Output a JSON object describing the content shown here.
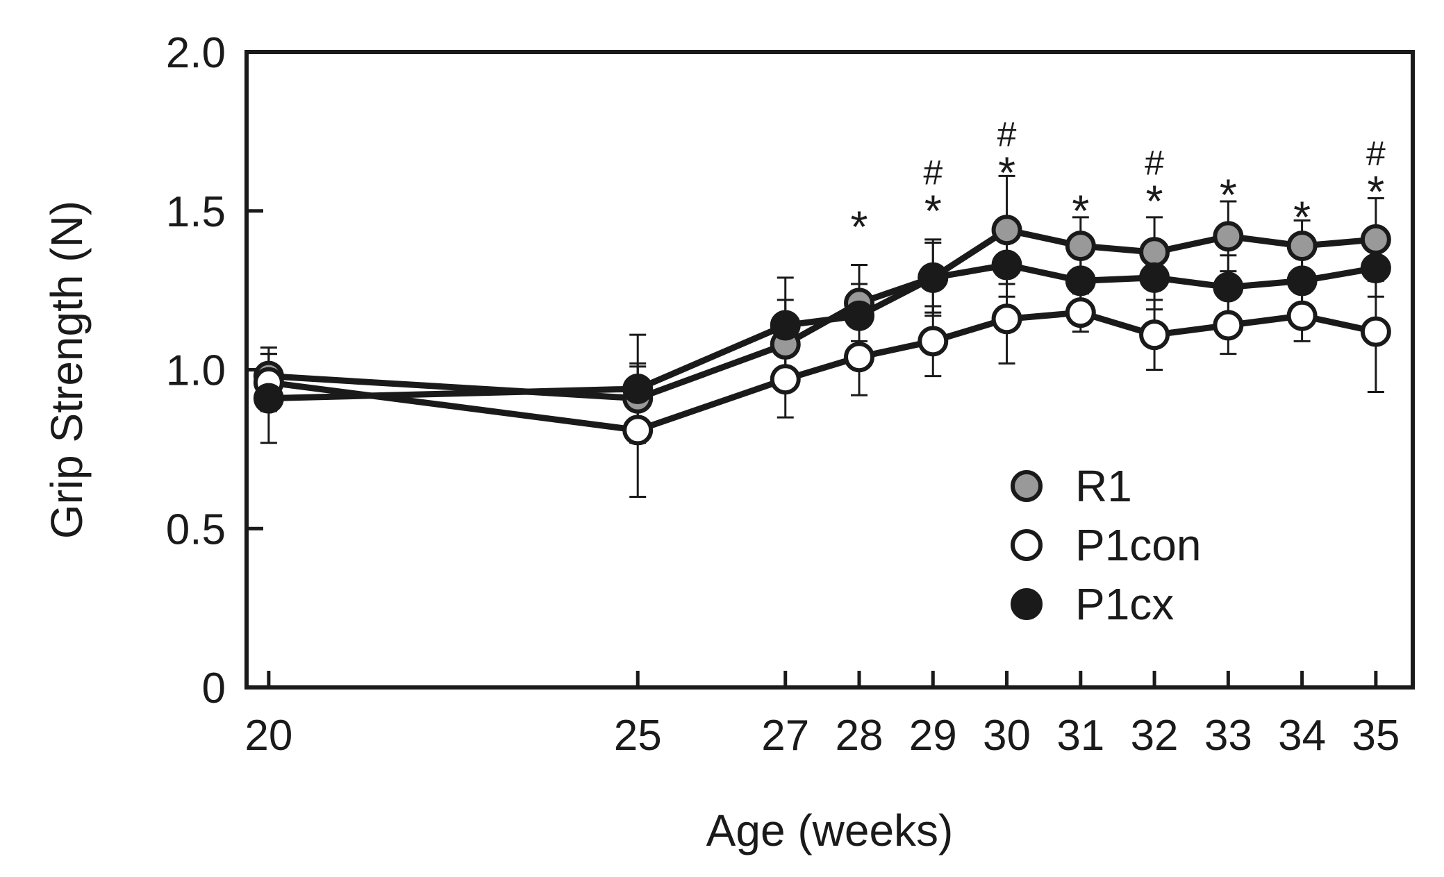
{
  "chart_data": {
    "type": "line",
    "title": "",
    "xlabel": "Age (weeks)",
    "ylabel": "Grip Strength (N)",
    "x": [
      20,
      25,
      27,
      28,
      29,
      30,
      31,
      32,
      33,
      34,
      35
    ],
    "x_tick_labels": [
      "20",
      "25",
      "27",
      "28",
      "29",
      "30",
      "31",
      "32",
      "33",
      "34",
      "35"
    ],
    "y_ticks": [
      0,
      0.5,
      1.0,
      1.5,
      2.0
    ],
    "y_tick_labels": [
      "0",
      "0.5",
      "1.0",
      "1.5",
      "2.0"
    ],
    "ylim": [
      0,
      2.0
    ],
    "xlim": [
      19.7,
      35.5
    ],
    "grid": false,
    "legend_position": "lower-right",
    "series": [
      {
        "name": "R1",
        "marker": "filled-gray",
        "color": "#999999",
        "values": [
          0.98,
          0.91,
          1.08,
          1.21,
          1.29,
          1.44,
          1.39,
          1.37,
          1.42,
          1.39,
          1.41
        ],
        "errors": [
          0.09,
          0.1,
          0.14,
          0.12,
          0.12,
          0.17,
          0.09,
          0.11,
          0.11,
          0.08,
          0.13
        ]
      },
      {
        "name": "P1con",
        "marker": "open",
        "color": "#ffffff",
        "values": [
          0.96,
          0.81,
          0.97,
          1.04,
          1.09,
          1.16,
          1.18,
          1.11,
          1.14,
          1.17,
          1.12
        ],
        "errors": [
          0.09,
          0.21,
          0.12,
          0.12,
          0.11,
          0.14,
          0.06,
          0.11,
          0.09,
          0.08,
          0.19
        ]
      },
      {
        "name": "P1cx",
        "marker": "filled-black",
        "color": "#1a1a1a",
        "values": [
          0.91,
          0.94,
          1.14,
          1.17,
          1.29,
          1.33,
          1.28,
          1.29,
          1.26,
          1.28,
          1.32
        ],
        "errors": [
          0.14,
          0.17,
          0.15,
          0.1,
          0.11,
          0.1,
          0.1,
          0.1,
          0.1,
          0.09,
          0.09
        ]
      }
    ],
    "annotations": [
      {
        "x": 28,
        "stars": "*",
        "hash": ""
      },
      {
        "x": 29,
        "stars": "*",
        "hash": "#"
      },
      {
        "x": 30,
        "stars": "*",
        "hash": "#"
      },
      {
        "x": 31,
        "stars": "*",
        "hash": ""
      },
      {
        "x": 32,
        "stars": "*",
        "hash": "#"
      },
      {
        "x": 33,
        "stars": "*",
        "hash": ""
      },
      {
        "x": 34,
        "stars": "*",
        "hash": ""
      },
      {
        "x": 35,
        "stars": "*",
        "hash": "#"
      }
    ],
    "annotation_levels": {
      "28": 1.49,
      "29": 1.54,
      "30": 1.66,
      "31": 1.54,
      "32": 1.57,
      "33": 1.59,
      "34": 1.52,
      "35": 1.6
    }
  }
}
